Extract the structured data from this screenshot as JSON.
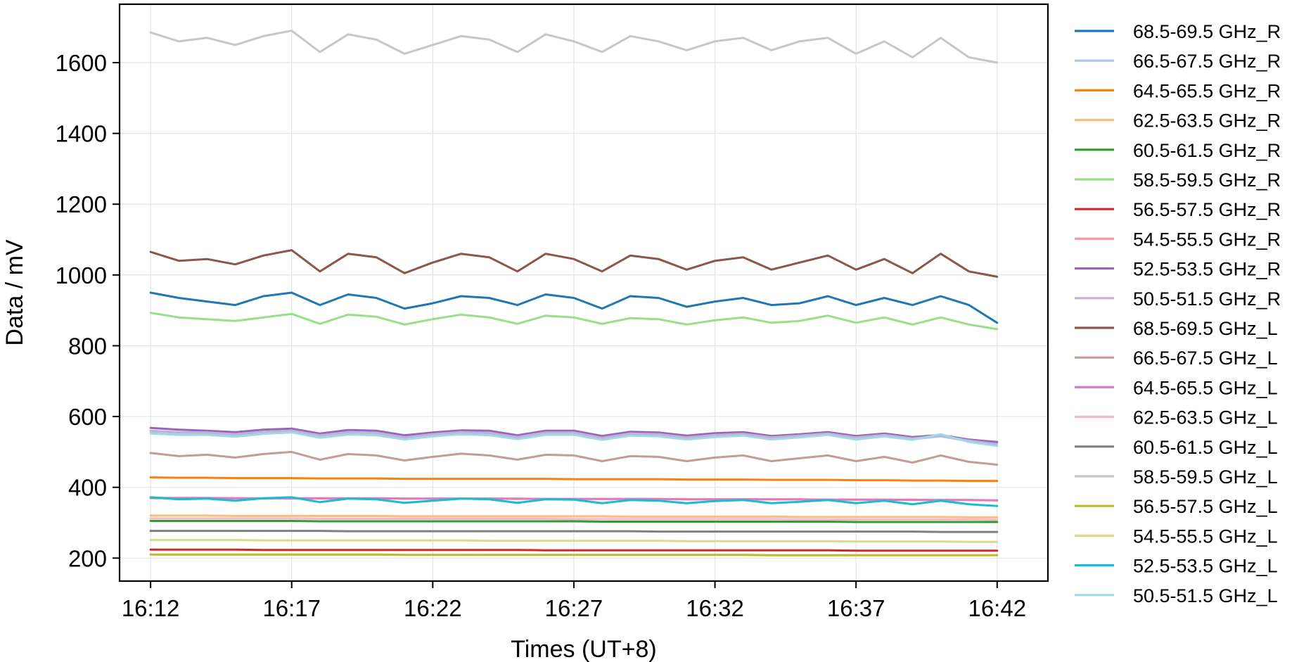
{
  "chart_data": {
    "type": "line",
    "title": "",
    "xlabel": "Times (UT+8)",
    "ylabel": "Data / mV",
    "x_ticks": [
      "16:12",
      "16:17",
      "16:22",
      "16:27",
      "16:32",
      "16:37",
      "16:42"
    ],
    "y_ticks": [
      200,
      400,
      600,
      800,
      1000,
      1200,
      1400,
      1600
    ],
    "xlim_minutes": [
      -1.1,
      31.8
    ],
    "ylim": [
      135,
      1765
    ],
    "grid": true,
    "legend_position": "outside-right",
    "x_minutes": [
      0,
      1,
      2,
      3,
      4,
      5,
      6,
      7,
      8,
      9,
      10,
      11,
      12,
      13,
      14,
      15,
      16,
      17,
      18,
      19,
      20,
      21,
      22,
      23,
      24,
      25,
      26,
      27,
      28,
      29,
      30
    ],
    "series": [
      {
        "name": "68.5-69.5 GHz_R",
        "color": "#1f77b4",
        "values": [
          950,
          935,
          925,
          915,
          940,
          950,
          915,
          945,
          935,
          905,
          920,
          940,
          935,
          915,
          945,
          935,
          905,
          940,
          935,
          910,
          925,
          935,
          915,
          920,
          940,
          915,
          935,
          915,
          940,
          915,
          865
        ]
      },
      {
        "name": "66.5-67.5 GHz_R",
        "color": "#aec7e8",
        "values": [
          555,
          552,
          553,
          546,
          554,
          559,
          545,
          553,
          552,
          538,
          548,
          554,
          552,
          540,
          552,
          553,
          537,
          550,
          547,
          538,
          546,
          550,
          538,
          544,
          550,
          538,
          546,
          536,
          544,
          530,
          518
        ]
      },
      {
        "name": "64.5-65.5 GHz_R",
        "color": "#ff7f0e",
        "values": [
          428,
          427,
          427,
          426,
          426,
          426,
          425,
          425,
          425,
          424,
          424,
          424,
          424,
          424,
          424,
          423,
          423,
          423,
          423,
          422,
          422,
          422,
          421,
          421,
          421,
          420,
          420,
          419,
          419,
          418,
          418
        ]
      },
      {
        "name": "62.5-63.5 GHz_R",
        "color": "#ffbb78",
        "values": [
          320,
          320,
          320,
          319,
          319,
          319,
          319,
          319,
          319,
          318,
          318,
          318,
          318,
          318,
          318,
          318,
          318,
          317,
          317,
          317,
          317,
          317,
          317,
          316,
          316,
          316,
          316,
          316,
          316,
          315,
          315
        ]
      },
      {
        "name": "60.5-61.5 GHz_R",
        "color": "#2ca02c",
        "values": [
          305,
          305,
          305,
          305,
          305,
          305,
          304,
          304,
          304,
          304,
          304,
          304,
          304,
          304,
          304,
          304,
          303,
          303,
          303,
          303,
          303,
          303,
          303,
          303,
          303,
          302,
          302,
          302,
          302,
          302,
          302
        ]
      },
      {
        "name": "58.5-59.5 GHz_R",
        "color": "#98df8a",
        "values": [
          893,
          880,
          875,
          870,
          880,
          890,
          862,
          888,
          882,
          860,
          875,
          888,
          880,
          862,
          885,
          880,
          862,
          878,
          875,
          860,
          872,
          880,
          865,
          870,
          885,
          865,
          880,
          860,
          880,
          860,
          847
        ]
      },
      {
        "name": "56.5-57.5 GHz_R",
        "color": "#d62728",
        "values": [
          224,
          224,
          224,
          224,
          223,
          223,
          223,
          223,
          223,
          223,
          223,
          223,
          223,
          223,
          222,
          222,
          222,
          222,
          222,
          222,
          222,
          222,
          222,
          222,
          222,
          221,
          221,
          221,
          221,
          221,
          221
        ]
      },
      {
        "name": "54.5-55.5 GHz_R",
        "color": "#ff9896",
        "values": [
          369,
          369,
          369,
          369,
          368,
          368,
          368,
          368,
          368,
          368,
          368,
          368,
          368,
          367,
          367,
          367,
          367,
          367,
          367,
          366,
          366,
          366,
          366,
          366,
          365,
          365,
          365,
          365,
          364,
          364,
          363
        ]
      },
      {
        "name": "52.5-53.5 GHz_R",
        "color": "#9467bd",
        "values": [
          568,
          563,
          560,
          556,
          563,
          566,
          552,
          562,
          560,
          547,
          555,
          561,
          560,
          547,
          560,
          560,
          545,
          557,
          555,
          546,
          553,
          556,
          545,
          550,
          556,
          545,
          552,
          542,
          548,
          535,
          528
        ]
      },
      {
        "name": "50.5-51.5 GHz_R",
        "color": "#c5b0d5",
        "values": [
          560,
          556,
          555,
          550,
          557,
          560,
          547,
          556,
          554,
          541,
          550,
          556,
          554,
          542,
          555,
          555,
          540,
          552,
          550,
          541,
          548,
          551,
          541,
          546,
          552,
          541,
          548,
          538,
          546,
          532,
          522
        ]
      },
      {
        "name": "68.5-69.5 GHz_L",
        "color": "#8c564b",
        "values": [
          1065,
          1040,
          1045,
          1030,
          1055,
          1070,
          1010,
          1060,
          1050,
          1005,
          1035,
          1060,
          1050,
          1010,
          1060,
          1045,
          1010,
          1055,
          1045,
          1015,
          1040,
          1050,
          1015,
          1035,
          1055,
          1015,
          1045,
          1005,
          1060,
          1010,
          995
        ]
      },
      {
        "name": "66.5-67.5 GHz_L",
        "color": "#c49c94",
        "values": [
          497,
          488,
          492,
          484,
          494,
          500,
          478,
          494,
          490,
          476,
          486,
          495,
          490,
          478,
          492,
          490,
          474,
          488,
          486,
          474,
          484,
          490,
          474,
          482,
          490,
          474,
          486,
          470,
          490,
          472,
          464
        ]
      },
      {
        "name": "64.5-65.5 GHz_L",
        "color": "#e377c2",
        "values": [
          370,
          370,
          370,
          369,
          369,
          369,
          369,
          369,
          369,
          368,
          368,
          368,
          368,
          368,
          367,
          367,
          367,
          367,
          367,
          366,
          366,
          366,
          366,
          366,
          365,
          365,
          365,
          364,
          364,
          364,
          363
        ]
      },
      {
        "name": "62.5-63.5 GHz_L",
        "color": "#f7b6d2",
        "values": [
          312,
          312,
          312,
          312,
          312,
          312,
          311,
          311,
          311,
          311,
          311,
          311,
          311,
          311,
          311,
          310,
          310,
          310,
          310,
          310,
          310,
          310,
          310,
          309,
          309,
          309,
          309,
          309,
          309,
          309,
          308
        ]
      },
      {
        "name": "60.5-61.5 GHz_L",
        "color": "#7f7f7f",
        "values": [
          277,
          277,
          277,
          277,
          277,
          277,
          277,
          276,
          276,
          276,
          276,
          276,
          276,
          276,
          276,
          276,
          276,
          276,
          275,
          275,
          275,
          275,
          275,
          275,
          275,
          275,
          275,
          275,
          274,
          274,
          274
        ]
      },
      {
        "name": "58.5-59.5 GHz_L",
        "color": "#c7c7c7",
        "values": [
          1685,
          1660,
          1670,
          1650,
          1675,
          1690,
          1630,
          1680,
          1665,
          1625,
          1650,
          1675,
          1665,
          1630,
          1680,
          1660,
          1630,
          1675,
          1660,
          1635,
          1660,
          1670,
          1635,
          1660,
          1670,
          1625,
          1660,
          1615,
          1670,
          1615,
          1600
        ]
      },
      {
        "name": "56.5-57.5 GHz_L",
        "color": "#bcbd22",
        "values": [
          210,
          210,
          210,
          210,
          210,
          210,
          210,
          210,
          210,
          209,
          209,
          209,
          209,
          209,
          209,
          209,
          209,
          209,
          209,
          209,
          209,
          209,
          208,
          208,
          208,
          208,
          208,
          208,
          208,
          208,
          208
        ]
      },
      {
        "name": "54.5-55.5 GHz_L",
        "color": "#dbdb8d",
        "values": [
          251,
          251,
          251,
          251,
          250,
          250,
          250,
          250,
          250,
          250,
          250,
          250,
          249,
          249,
          249,
          249,
          249,
          249,
          249,
          248,
          248,
          248,
          248,
          248,
          248,
          247,
          247,
          247,
          247,
          246,
          246
        ]
      },
      {
        "name": "52.5-53.5 GHz_L",
        "color": "#17becf",
        "values": [
          372,
          366,
          368,
          362,
          369,
          372,
          358,
          368,
          366,
          356,
          362,
          368,
          366,
          356,
          366,
          365,
          355,
          364,
          362,
          355,
          361,
          364,
          355,
          359,
          364,
          355,
          362,
          352,
          362,
          352,
          347
        ]
      },
      {
        "name": "50.5-51.5 GHz_L",
        "color": "#9edae5",
        "values": [
          552,
          548,
          548,
          543,
          551,
          555,
          540,
          549,
          547,
          535,
          544,
          550,
          547,
          536,
          548,
          548,
          534,
          546,
          544,
          535,
          542,
          546,
          535,
          541,
          548,
          535,
          544,
          534,
          550,
          528,
          517
        ]
      }
    ]
  }
}
